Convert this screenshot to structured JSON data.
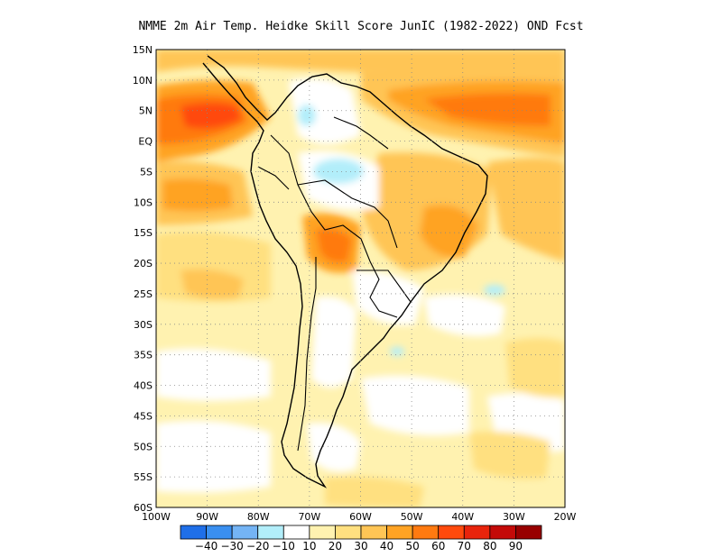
{
  "title": "NMME  2m Air Temp. Heidke Skill Score JunIC (1982-2022) OND Fcst",
  "map": {
    "lat_labels": [
      "15N",
      "10N",
      "5N",
      "EQ",
      "5S",
      "10S",
      "15S",
      "20S",
      "25S",
      "30S",
      "35S",
      "40S",
      "45S",
      "50S",
      "55S",
      "60S"
    ],
    "lon_labels": [
      "100W",
      "90W",
      "80W",
      "70W",
      "60W",
      "50W",
      "40W",
      "30W",
      "20W"
    ],
    "grid": "dotted"
  },
  "colorbar": {
    "colors": [
      "#1f6fe8",
      "#3a8ff0",
      "#74b4f5",
      "#b2eefa",
      "#ffffff",
      "#fff2b0",
      "#ffe080",
      "#ffc555",
      "#ffa324",
      "#ff7a10",
      "#ff4a0d",
      "#e8240c",
      "#c40a08",
      "#980000"
    ],
    "labels": [
      "-40",
      "-30",
      "-20",
      "-10",
      "10",
      "20",
      "30",
      "40",
      "50",
      "60",
      "70",
      "80",
      "90"
    ]
  }
}
